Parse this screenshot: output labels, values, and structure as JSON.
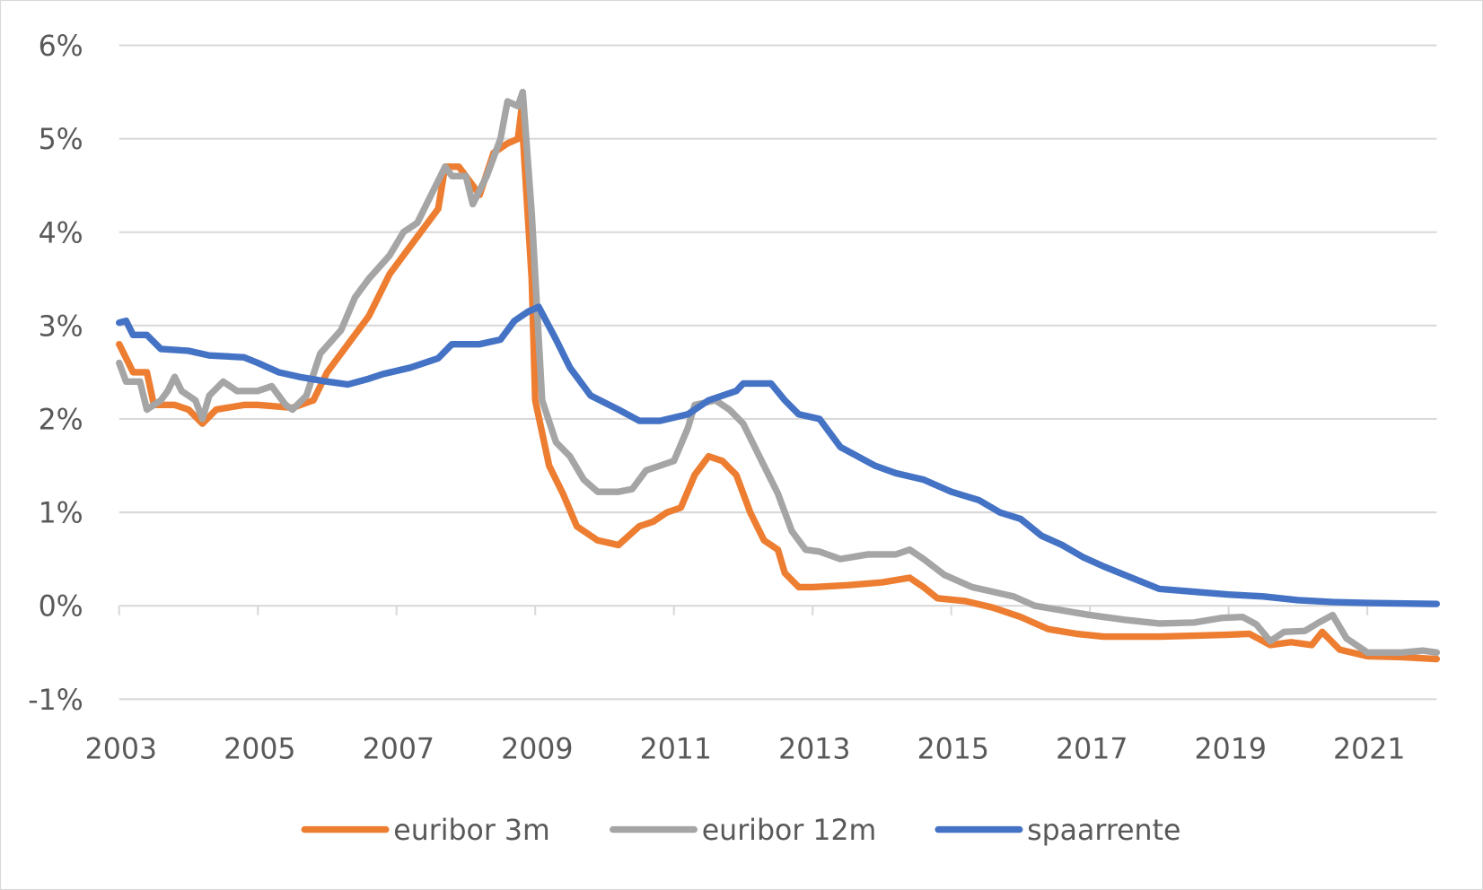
{
  "chart_data": {
    "type": "line",
    "title": "",
    "xlabel": "",
    "ylabel": "",
    "xlim": [
      2003,
      2022
    ],
    "ylim": [
      -1,
      6
    ],
    "grid": true,
    "legend_position": "bottom",
    "y_ticks": [
      {
        "value": 6,
        "label": "6%"
      },
      {
        "value": 5,
        "label": "5%"
      },
      {
        "value": 4,
        "label": "4%"
      },
      {
        "value": 3,
        "label": "3%"
      },
      {
        "value": 2,
        "label": "2%"
      },
      {
        "value": 1,
        "label": "1%"
      },
      {
        "value": 0,
        "label": "0%"
      },
      {
        "value": -1,
        "label": "-1%"
      }
    ],
    "x_ticks": [
      {
        "value": 2003,
        "label": "2003"
      },
      {
        "value": 2005,
        "label": "2005"
      },
      {
        "value": 2007,
        "label": "2007"
      },
      {
        "value": 2009,
        "label": "2009"
      },
      {
        "value": 2011,
        "label": "2011"
      },
      {
        "value": 2013,
        "label": "2013"
      },
      {
        "value": 2015,
        "label": "2015"
      },
      {
        "value": 2017,
        "label": "2017"
      },
      {
        "value": 2019,
        "label": "2019"
      },
      {
        "value": 2021,
        "label": "2021"
      }
    ],
    "series": [
      {
        "name": "euribor 3m",
        "color": "#ED7D31",
        "x": [
          2003.0,
          2003.2,
          2003.4,
          2003.5,
          2003.8,
          2004.0,
          2004.2,
          2004.4,
          2004.8,
          2005.0,
          2005.5,
          2005.8,
          2006.0,
          2006.3,
          2006.6,
          2006.9,
          2007.2,
          2007.5,
          2007.6,
          2007.7,
          2007.9,
          2008.0,
          2008.2,
          2008.4,
          2008.6,
          2008.75,
          2008.8,
          2008.95,
          2009.0,
          2009.2,
          2009.4,
          2009.6,
          2009.9,
          2010.2,
          2010.5,
          2010.7,
          2010.9,
          2011.1,
          2011.3,
          2011.5,
          2011.7,
          2011.9,
          2012.1,
          2012.3,
          2012.5,
          2012.6,
          2012.8,
          2013.0,
          2013.5,
          2014.0,
          2014.4,
          2014.6,
          2014.8,
          2015.2,
          2015.6,
          2016.0,
          2016.4,
          2016.8,
          2017.2,
          2018.0,
          2018.5,
          2019.0,
          2019.3,
          2019.6,
          2019.9,
          2020.2,
          2020.35,
          2020.6,
          2021.0,
          2021.5,
          2022.0
        ],
        "y": [
          2.8,
          2.5,
          2.5,
          2.15,
          2.15,
          2.1,
          1.95,
          2.1,
          2.15,
          2.15,
          2.12,
          2.2,
          2.5,
          2.8,
          3.1,
          3.55,
          3.85,
          4.15,
          4.25,
          4.7,
          4.7,
          4.6,
          4.4,
          4.85,
          4.95,
          5.0,
          5.3,
          3.5,
          2.2,
          1.5,
          1.2,
          0.85,
          0.7,
          0.65,
          0.85,
          0.9,
          1.0,
          1.05,
          1.4,
          1.6,
          1.55,
          1.4,
          1.0,
          0.7,
          0.6,
          0.35,
          0.2,
          0.2,
          0.22,
          0.25,
          0.3,
          0.2,
          0.08,
          0.05,
          -0.02,
          -0.12,
          -0.25,
          -0.3,
          -0.33,
          -0.33,
          -0.32,
          -0.31,
          -0.3,
          -0.42,
          -0.39,
          -0.42,
          -0.28,
          -0.47,
          -0.54,
          -0.55,
          -0.57
        ]
      },
      {
        "name": "euribor 12m",
        "color": "#A5A5A5",
        "x": [
          2003.0,
          2003.1,
          2003.3,
          2003.4,
          2003.6,
          2003.7,
          2003.8,
          2003.9,
          2004.1,
          2004.2,
          2004.3,
          2004.5,
          2004.7,
          2005.0,
          2005.2,
          2005.4,
          2005.5,
          2005.7,
          2005.9,
          2006.2,
          2006.4,
          2006.6,
          2006.9,
          2007.1,
          2007.3,
          2007.5,
          2007.6,
          2007.7,
          2007.8,
          2008.0,
          2008.1,
          2008.3,
          2008.5,
          2008.6,
          2008.75,
          2008.82,
          2008.95,
          2009.1,
          2009.3,
          2009.5,
          2009.7,
          2009.9,
          2010.2,
          2010.4,
          2010.6,
          2010.8,
          2011.0,
          2011.2,
          2011.3,
          2011.6,
          2011.8,
          2012.0,
          2012.3,
          2012.5,
          2012.7,
          2012.9,
          2013.1,
          2013.4,
          2013.8,
          2014.2,
          2014.4,
          2014.6,
          2014.9,
          2015.3,
          2015.6,
          2015.9,
          2016.2,
          2016.6,
          2017.0,
          2017.5,
          2018.0,
          2018.5,
          2018.9,
          2019.2,
          2019.4,
          2019.6,
          2019.8,
          2020.1,
          2020.3,
          2020.5,
          2020.7,
          2021.0,
          2021.5,
          2021.8,
          2022.0
        ],
        "y": [
          2.6,
          2.4,
          2.4,
          2.1,
          2.2,
          2.3,
          2.45,
          2.3,
          2.2,
          2.0,
          2.25,
          2.4,
          2.3,
          2.3,
          2.35,
          2.15,
          2.1,
          2.25,
          2.7,
          2.95,
          3.3,
          3.5,
          3.75,
          4.0,
          4.1,
          4.4,
          4.55,
          4.7,
          4.6,
          4.6,
          4.3,
          4.6,
          5.0,
          5.4,
          5.35,
          5.5,
          4.2,
          2.2,
          1.75,
          1.6,
          1.35,
          1.22,
          1.22,
          1.25,
          1.45,
          1.5,
          1.55,
          1.9,
          2.15,
          2.2,
          2.1,
          1.95,
          1.5,
          1.2,
          0.8,
          0.6,
          0.58,
          0.5,
          0.55,
          0.55,
          0.6,
          0.5,
          0.33,
          0.2,
          0.15,
          0.1,
          0.0,
          -0.05,
          -0.1,
          -0.15,
          -0.19,
          -0.18,
          -0.13,
          -0.12,
          -0.2,
          -0.38,
          -0.28,
          -0.27,
          -0.18,
          -0.1,
          -0.35,
          -0.5,
          -0.5,
          -0.48,
          -0.5
        ]
      },
      {
        "name": "spaarrente",
        "color": "#4472C4",
        "x": [
          2003.0,
          2003.1,
          2003.2,
          2003.4,
          2003.6,
          2004.0,
          2004.3,
          2004.8,
          2005.0,
          2005.3,
          2005.6,
          2006.0,
          2006.3,
          2006.6,
          2006.8,
          2007.2,
          2007.6,
          2007.8,
          2008.2,
          2008.5,
          2008.7,
          2008.9,
          2009.05,
          2009.3,
          2009.5,
          2009.8,
          2010.2,
          2010.5,
          2010.8,
          2011.2,
          2011.5,
          2011.9,
          2012.0,
          2012.4,
          2012.6,
          2012.8,
          2013.1,
          2013.4,
          2013.6,
          2013.9,
          2014.2,
          2014.6,
          2015.0,
          2015.4,
          2015.7,
          2016.0,
          2016.3,
          2016.6,
          2016.9,
          2017.2,
          2017.6,
          2018.0,
          2018.5,
          2019.0,
          2019.5,
          2020.0,
          2020.5,
          2021.0,
          2022.0
        ],
        "y": [
          3.03,
          3.05,
          2.9,
          2.9,
          2.75,
          2.73,
          2.68,
          2.66,
          2.6,
          2.5,
          2.45,
          2.4,
          2.37,
          2.43,
          2.48,
          2.55,
          2.65,
          2.8,
          2.8,
          2.85,
          3.05,
          3.15,
          3.2,
          2.85,
          2.55,
          2.25,
          2.1,
          1.98,
          1.98,
          2.05,
          2.2,
          2.3,
          2.38,
          2.38,
          2.2,
          2.05,
          2.0,
          1.7,
          1.62,
          1.5,
          1.42,
          1.35,
          1.22,
          1.13,
          1.0,
          0.93,
          0.75,
          0.65,
          0.52,
          0.42,
          0.3,
          0.18,
          0.15,
          0.12,
          0.1,
          0.06,
          0.04,
          0.03,
          0.02
        ]
      }
    ]
  }
}
